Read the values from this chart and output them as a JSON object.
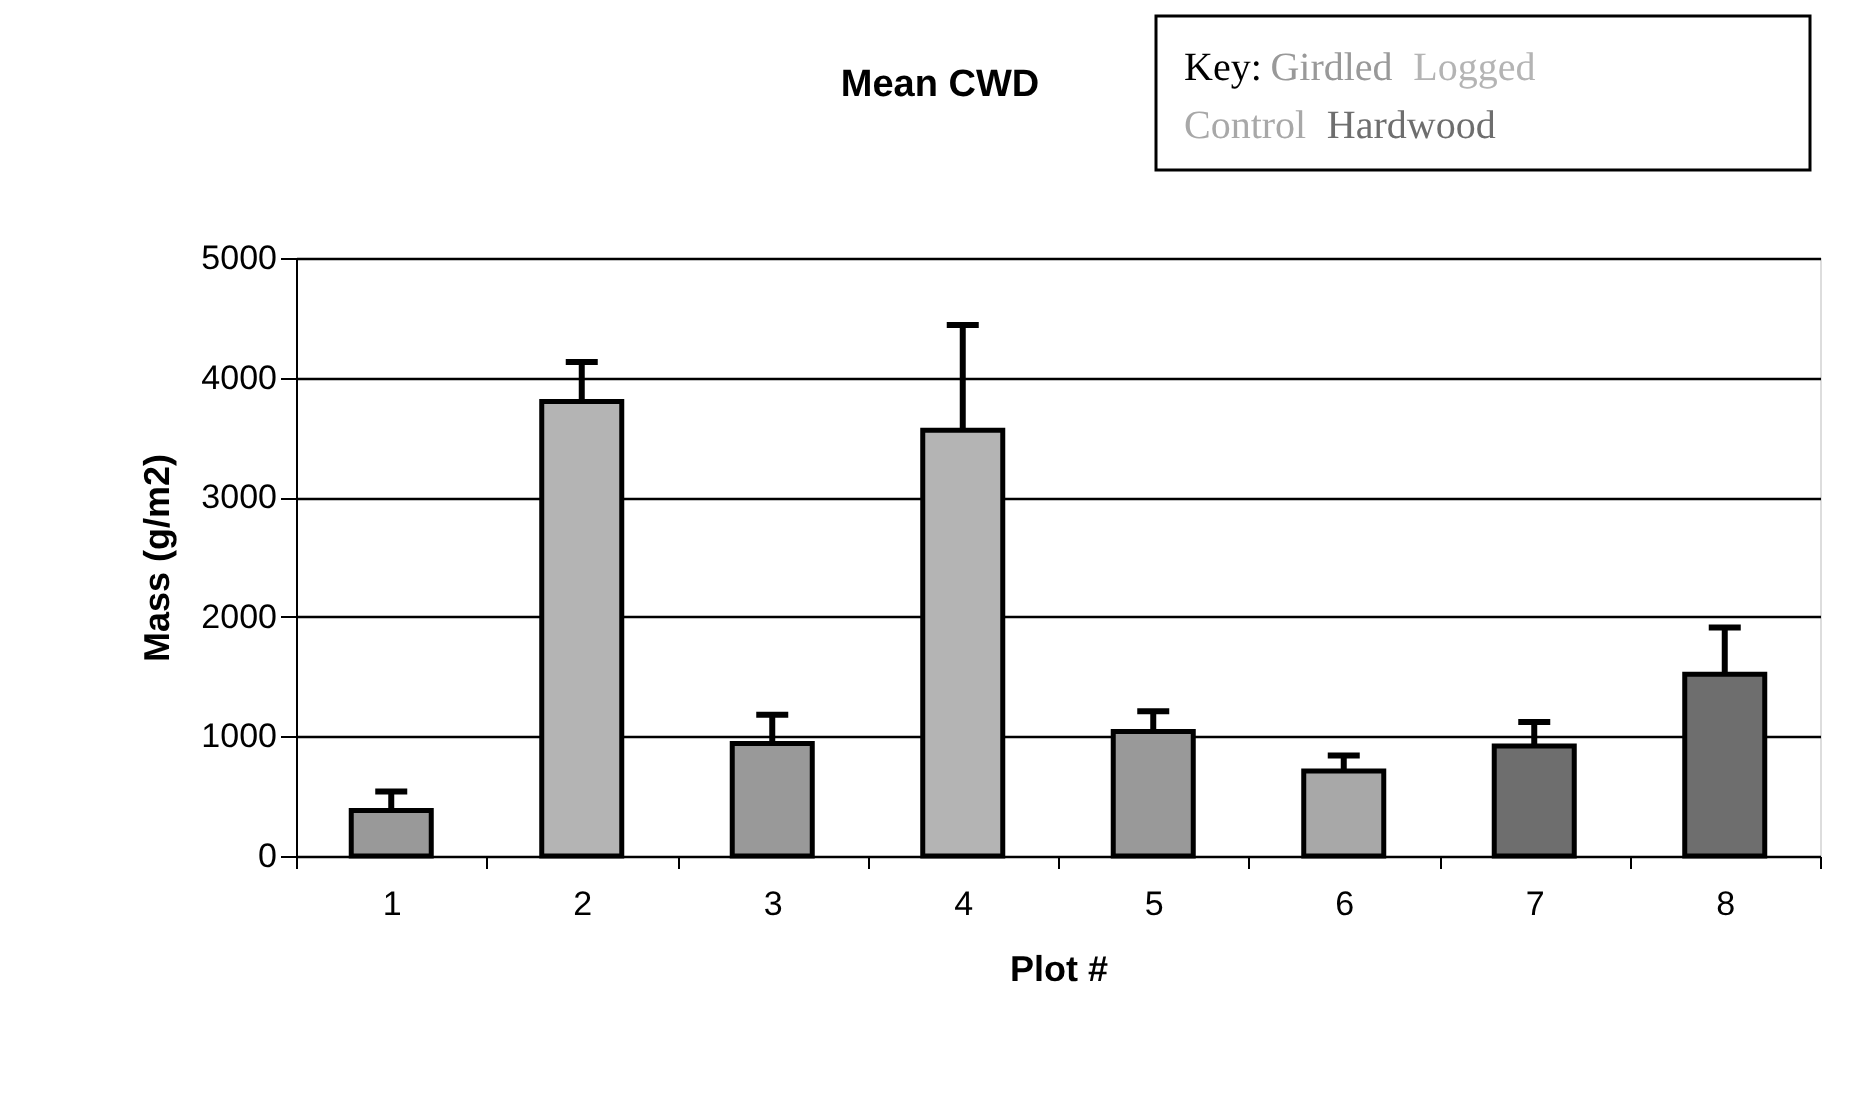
{
  "chart_data": {
    "type": "bar",
    "title": "Mean CWD",
    "xlabel": "Plot #",
    "ylabel": "Mass (g/m2)",
    "legend_title": "Key:",
    "legend": "top right",
    "grid": "y",
    "categories": [
      "1",
      "2",
      "3",
      "4",
      "5",
      "6",
      "7",
      "8"
    ],
    "ylim": [
      0,
      5000
    ],
    "yticks": [
      0,
      1000,
      2000,
      3000,
      4000,
      5000
    ],
    "series": [
      {
        "name": "Girdled",
        "color": "#999999",
        "values": [
          380,
          null,
          940,
          null,
          1040,
          null,
          null,
          null
        ],
        "errors": [
          [
            380,
            540
          ],
          null,
          [
            940,
            1180
          ],
          null,
          [
            1040,
            1210
          ],
          null,
          null,
          null
        ]
      },
      {
        "name": "Logged",
        "color": "#b4b4b4",
        "values": [
          null,
          3800,
          null,
          3560,
          null,
          null,
          null,
          null
        ],
        "errors": [
          null,
          [
            3800,
            4130
          ],
          null,
          [
            3560,
            4440
          ],
          null,
          null,
          null,
          null
        ]
      },
      {
        "name": "Control",
        "color": "#a8a8a8",
        "values": [
          null,
          null,
          null,
          null,
          null,
          710,
          null,
          null
        ],
        "errors": [
          null,
          null,
          null,
          null,
          null,
          [
            710,
            840
          ],
          null,
          null
        ]
      },
      {
        "name": "Hardwood",
        "color": "#6e6e6e",
        "values": [
          null,
          null,
          null,
          null,
          null,
          null,
          920,
          1520
        ],
        "errors": [
          null,
          null,
          null,
          null,
          null,
          null,
          [
            920,
            1120
          ],
          [
            1520,
            1910
          ]
        ]
      }
    ]
  }
}
